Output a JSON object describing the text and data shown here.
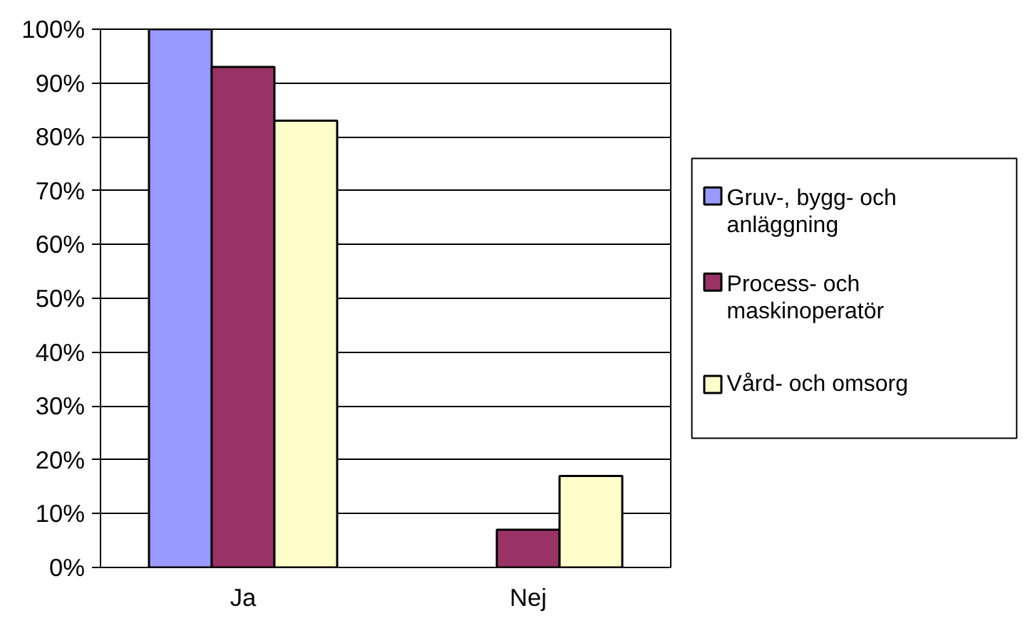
{
  "chart_data": {
    "type": "bar",
    "categories": [
      "Ja",
      "Nej"
    ],
    "series": [
      {
        "name": "Gruv-, bygg- och anläggning",
        "color": "#9999ff",
        "values": [
          100,
          0
        ]
      },
      {
        "name": "Process- och maskinoperatör",
        "color": "#993366",
        "values": [
          93,
          7
        ]
      },
      {
        "name": "Vård- och omsorg",
        "color": "#ffffcc",
        "values": [
          83,
          17
        ]
      }
    ],
    "ylim": [
      0,
      100
    ],
    "yticks": [
      {
        "value": 0,
        "label": "0%"
      },
      {
        "value": 10,
        "label": "10%"
      },
      {
        "value": 20,
        "label": "20%"
      },
      {
        "value": 30,
        "label": "30%"
      },
      {
        "value": 40,
        "label": "40%"
      },
      {
        "value": 50,
        "label": "50%"
      },
      {
        "value": 60,
        "label": "60%"
      },
      {
        "value": 70,
        "label": "70%"
      },
      {
        "value": 80,
        "label": "80%"
      },
      {
        "value": 90,
        "label": "90%"
      },
      {
        "value": 100,
        "label": "100%"
      }
    ],
    "grid": "y",
    "legend": "right"
  }
}
